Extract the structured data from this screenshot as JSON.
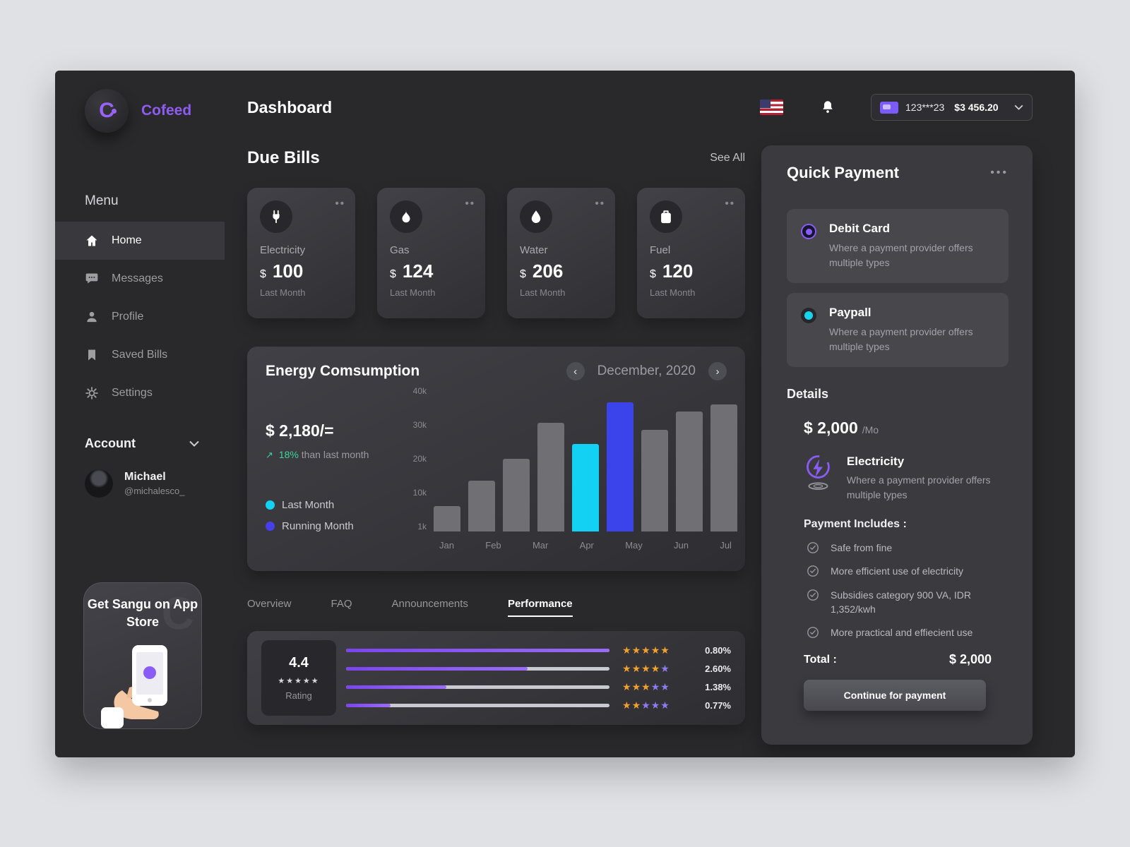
{
  "app": {
    "brand": "Cofeed",
    "title": "Dashboard"
  },
  "header": {
    "card_number": "123***23",
    "balance": "$3 456.20"
  },
  "sidebar": {
    "menu_label": "Menu",
    "items": [
      {
        "label": "Home"
      },
      {
        "label": "Messages"
      },
      {
        "label": "Profile"
      },
      {
        "label": "Saved Bills"
      },
      {
        "label": "Settings"
      }
    ],
    "account_label": "Account",
    "user": {
      "name": "Michael",
      "handle": "@michalesco_"
    },
    "promo_title": "Get Sangu on App Store"
  },
  "due_bills": {
    "title": "Due Bills",
    "see_all": "See All",
    "cards": [
      {
        "label": "Electricity",
        "currency": "$",
        "amount": "100",
        "period": "Last Month"
      },
      {
        "label": "Gas",
        "currency": "$",
        "amount": "124",
        "period": "Last Month"
      },
      {
        "label": "Water",
        "currency": "$",
        "amount": "206",
        "period": "Last Month"
      },
      {
        "label": "Fuel",
        "currency": "$",
        "amount": "120",
        "period": "Last Month"
      }
    ]
  },
  "chart_data": {
    "type": "bar",
    "title": "Energy Comsumption",
    "period": "December, 2020",
    "amount": "$ 2,180/=",
    "delta_percent": "18%",
    "delta_label": "than last month",
    "legend": [
      {
        "label": "Last Month",
        "color": "#12d1f2"
      },
      {
        "label": "Running Month",
        "color": "#4740ea"
      }
    ],
    "y_ticks": [
      "40k",
      "30k",
      "20k",
      "10k",
      "1k"
    ],
    "x_labels": [
      "Jan",
      "Feb",
      "Mar",
      "Apr",
      "May",
      "Jun",
      "Jul"
    ],
    "ylim": [
      0,
      40000
    ],
    "bars": [
      {
        "value": 7000,
        "color": "#6f6f74"
      },
      {
        "value": 14000,
        "color": "#6f6f74"
      },
      {
        "value": 20000,
        "color": "#6f6f74"
      },
      {
        "value": 30000,
        "color": "#6f6f74"
      },
      {
        "value": 24000,
        "color": "#12d1f2"
      },
      {
        "value": 35500,
        "color": "#3b43ea"
      },
      {
        "value": 28000,
        "color": "#6f6f74"
      },
      {
        "value": 33000,
        "color": "#6f6f74"
      },
      {
        "value": 35000,
        "color": "#6f6f74"
      }
    ]
  },
  "tabs": [
    {
      "label": "Overview"
    },
    {
      "label": "FAQ"
    },
    {
      "label": "Announcements"
    },
    {
      "label": "Performance"
    }
  ],
  "performance": {
    "score": "4.4",
    "rating_label": "Rating",
    "score_stars": 5,
    "star_filled_color": "#f0a12f",
    "star_empty_color": "#8d7bf2",
    "rows": [
      {
        "fill": 100,
        "stars": 5,
        "percent": "0.80%"
      },
      {
        "fill": 69,
        "stars": 4,
        "percent": "2.60%"
      },
      {
        "fill": 38,
        "stars": 3,
        "percent": "1.38%"
      },
      {
        "fill": 17,
        "stars": 2,
        "percent": "0.77%"
      }
    ]
  },
  "quick_payment": {
    "title": "Quick Payment",
    "options": [
      {
        "name": "Debit Card",
        "desc": "Where a payment provider offers multiple types",
        "selected": true
      },
      {
        "name": "Paypall",
        "desc": "Where a payment provider offers multiple types",
        "selected": false
      }
    ],
    "details_label": "Details",
    "price": "$ 2,000",
    "price_period": "/Mo",
    "service": {
      "name": "Electricity",
      "desc": "Where a payment provider offers multiple types"
    },
    "includes_label": "Payment Includes :",
    "includes": [
      "Safe from fine",
      "More efficient use of electricity",
      "Subsidies category 900 VA, IDR 1,352/kwh",
      "More practical and effiecient use"
    ],
    "total_label": "Total :",
    "total_value": "$ 2,000",
    "cta": "Continue for payment"
  },
  "icons": {
    "logo": "cofeed-logo",
    "home": "home-icon",
    "messages": "chat-icon",
    "profile": "user-icon",
    "saved_bills": "bookmark-icon",
    "settings": "gear-icon",
    "flag": "us-flag-icon",
    "bell": "bell-icon",
    "card": "credit-card-icon",
    "chevron_down": "chevron-down-icon",
    "electricity": "power-plug-icon",
    "gas": "flame-icon",
    "water": "water-drop-icon",
    "fuel": "fuel-can-icon",
    "more": "more-dots-icon",
    "prev": "chevron-left-icon",
    "next": "chevron-right-icon",
    "check": "circle-check-icon",
    "star": "star-icon",
    "lightning": "lightning-icon",
    "trend_up": "trend-up-icon"
  },
  "colors": {
    "accent": "#8a5cf6",
    "cyan": "#17d4ee",
    "blue": "#3b43ea",
    "star_orange": "#f0a12f",
    "green": "#3ed598"
  }
}
